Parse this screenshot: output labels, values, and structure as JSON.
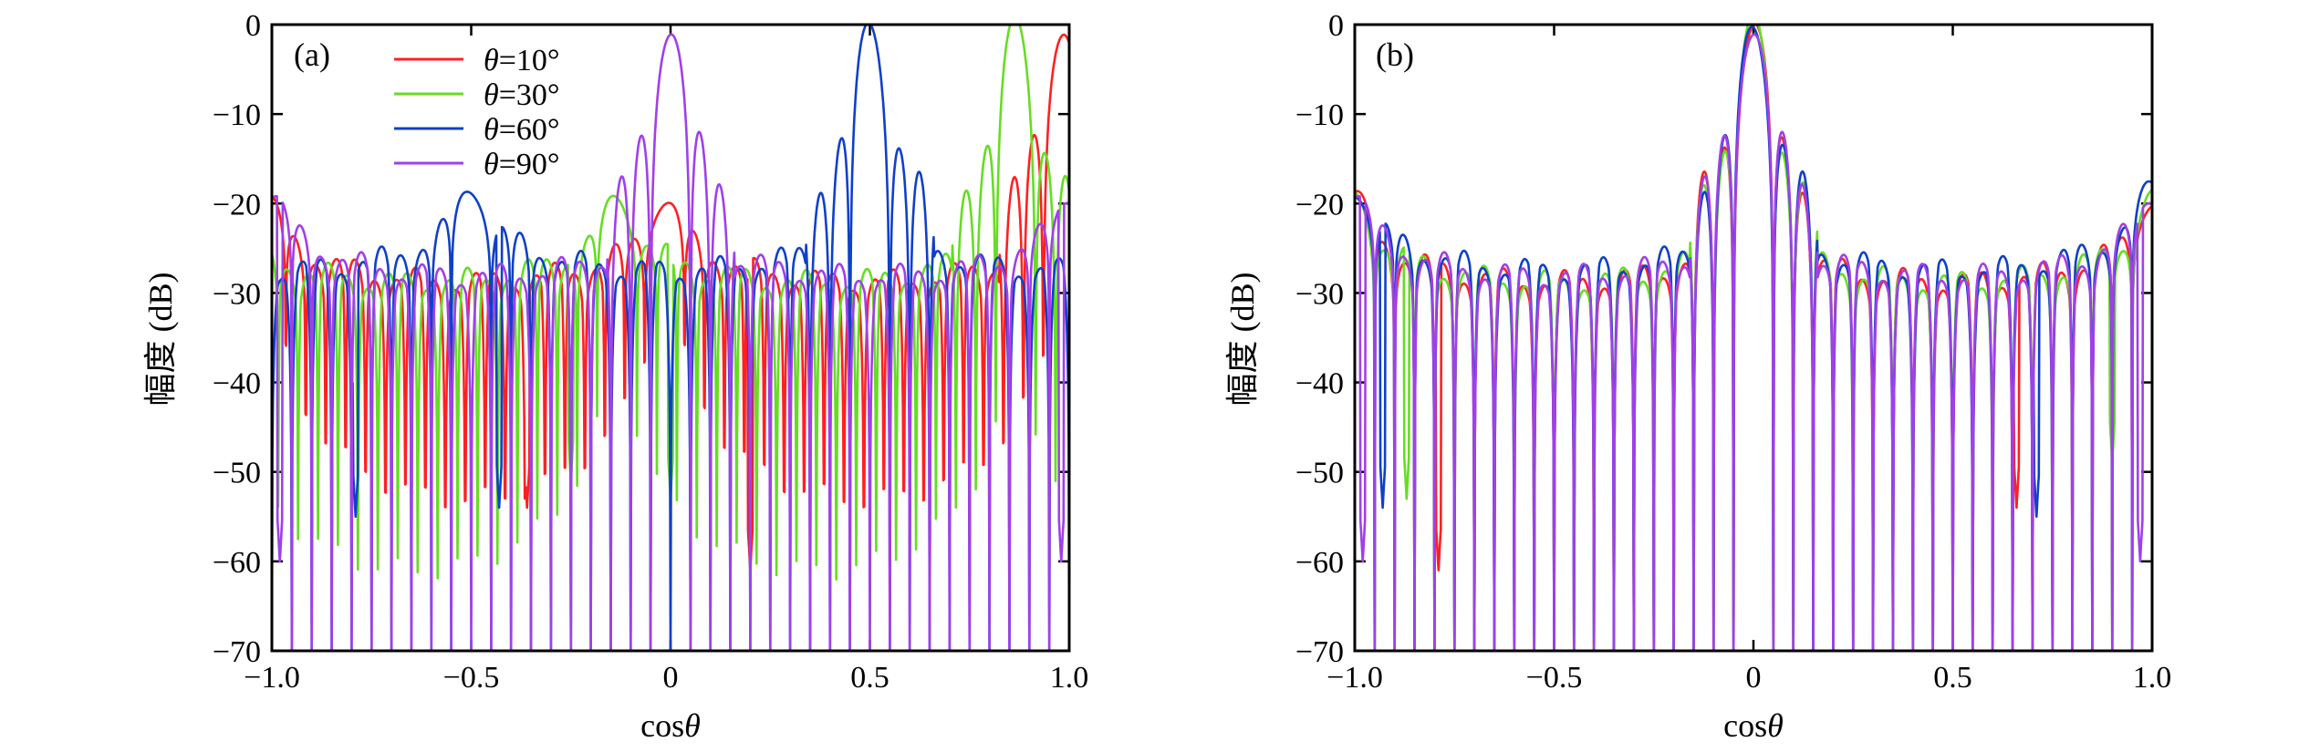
{
  "chart_data": [
    {
      "panel_label": "(a)",
      "type": "line",
      "xlabel_prefix": "cos",
      "xlabel_symbol": "θ",
      "ylabel": "幅度 (dB)",
      "xlim": [
        -1.0,
        1.0
      ],
      "ylim": [
        -70,
        0
      ],
      "xticks": [
        "−1.0",
        "−0.5",
        "0",
        "0.5",
        "1.0"
      ],
      "xtick_values": [
        -1.0,
        -0.5,
        0,
        0.5,
        1.0
      ],
      "yticks": [
        "0",
        "−10",
        "−20",
        "−30",
        "−40",
        "−50",
        "−60",
        "−70"
      ],
      "ytick_values": [
        0,
        -10,
        -20,
        -30,
        -40,
        -50,
        -60,
        -70
      ],
      "legend_position": "upper-left",
      "series": [
        {
          "name_symbol": "θ",
          "name_value": "=10°",
          "color": "#ff2020",
          "peak": 0.985,
          "floor": -30,
          "deep_nulls": [
            [
              -0.36,
              -54
            ],
            [
              0.2,
              -61
            ]
          ]
        },
        {
          "name_symbol": "θ",
          "name_value": "=30°",
          "color": "#66dd22",
          "peak": 0.866,
          "floor": -30,
          "deep_nulls": [
            [
              -0.25,
              -51
            ],
            [
              0.0,
              -53
            ]
          ]
        },
        {
          "name_symbol": "θ",
          "name_value": "=60°",
          "color": "#1040c8",
          "peak": 0.5,
          "floor": -28,
          "deep_nulls": [
            [
              -0.79,
              -55
            ],
            [
              -0.43,
              -54
            ]
          ]
        },
        {
          "name_symbol": "θ",
          "name_value": "=90°",
          "color": "#a040e8",
          "peak": 0.0,
          "floor": -29,
          "deep_nulls": [
            [
              -0.98,
              -60
            ],
            [
              0.98,
              -60
            ]
          ]
        }
      ]
    },
    {
      "panel_label": "(b)",
      "type": "line",
      "xlabel_prefix": "cos",
      "xlabel_symbol": "θ",
      "ylabel": "幅度 (dB)",
      "xlim": [
        -1.0,
        1.0
      ],
      "ylim": [
        -70,
        0
      ],
      "xticks": [
        "−1.0",
        "−0.5",
        "0",
        "0.5",
        "1.0"
      ],
      "xtick_values": [
        -1.0,
        -0.5,
        0,
        0.5,
        1.0
      ],
      "yticks": [
        "0",
        "−10",
        "−20",
        "−30",
        "−40",
        "−50",
        "−60",
        "−70"
      ],
      "ytick_values": [
        0,
        -10,
        -20,
        -30,
        -40,
        -50,
        -60,
        -70
      ],
      "series": [
        {
          "color": "#ff2020",
          "peak": 0.0,
          "floor": -30,
          "deep_nulls": [
            [
              -0.79,
              -61
            ],
            [
              0.66,
              -54
            ]
          ]
        },
        {
          "color": "#66dd22",
          "peak": 0.0,
          "floor": -30,
          "deep_nulls": [
            [
              -0.87,
              -53
            ],
            [
              0.9,
              -49
            ]
          ]
        },
        {
          "color": "#1040c8",
          "peak": 0.0,
          "floor": -28,
          "deep_nulls": [
            [
              -0.93,
              -54
            ],
            [
              0.71,
              -55
            ]
          ]
        },
        {
          "color": "#a040e8",
          "peak": 0.0,
          "floor": -29,
          "deep_nulls": [
            [
              -0.98,
              -60
            ],
            [
              0.97,
              -60
            ]
          ]
        }
      ]
    }
  ]
}
